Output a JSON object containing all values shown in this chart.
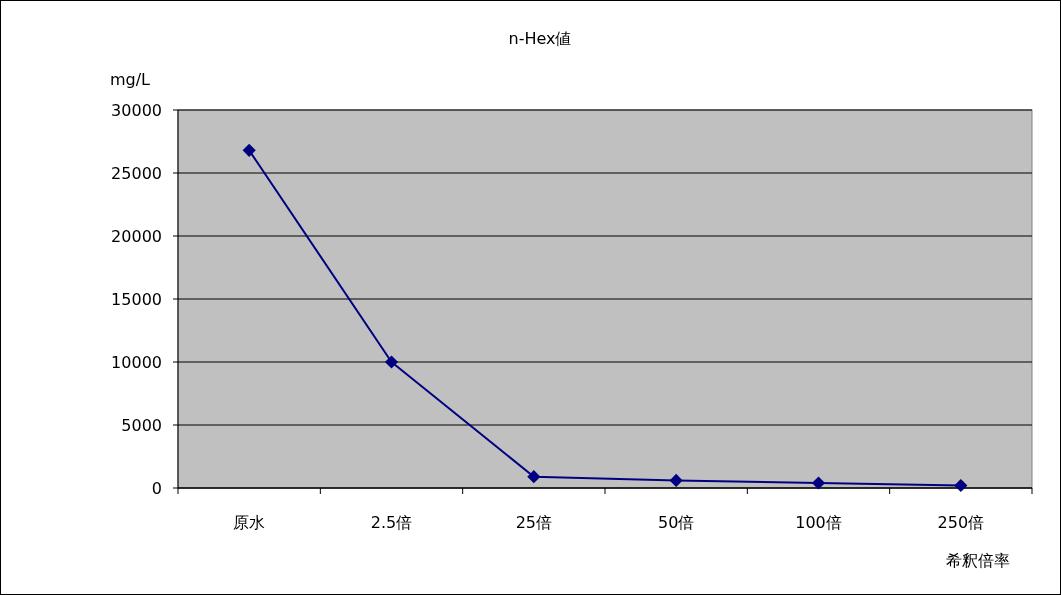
{
  "chart_data": {
    "type": "line",
    "title": "n-Hex値",
    "ylabel": "mg/L",
    "xlabel": "希釈倍率",
    "categories": [
      "原水",
      "2.5倍",
      "25倍",
      "50倍",
      "100倍",
      "250倍"
    ],
    "series": [
      {
        "color": "#000080",
        "values": [
          26800,
          10000,
          900,
          600,
          400,
          200
        ]
      }
    ],
    "ylim": [
      0,
      30000
    ],
    "yticks": [
      0,
      5000,
      10000,
      15000,
      20000,
      25000,
      30000
    ],
    "grid": "y",
    "marker": "diamond",
    "line_style": "solid"
  }
}
